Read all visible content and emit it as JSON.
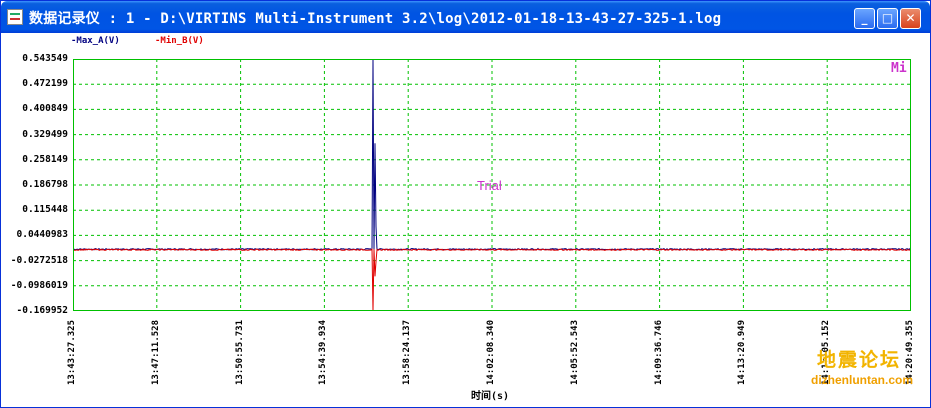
{
  "window": {
    "title": "数据记录仪 : 1 - D:\\VIRTINS Multi-Instrument 3.2\\log\\2012-01-18-13-43-27-325-1.log",
    "icon": "chart-app-icon",
    "buttons": {
      "minimize": "_",
      "maximize": "□",
      "close": "✕"
    }
  },
  "overlay": {
    "mi_label": "Mi",
    "trial_label": "Trial"
  },
  "watermark": {
    "logo_text": "地震论坛",
    "site": "dizhenluntan.com"
  },
  "colors": {
    "series_a": "#000080",
    "series_b": "#e00000",
    "grid": "#00c000",
    "plot_border": "#00c000",
    "overlay_text": "#cc33cc"
  },
  "chart_data": {
    "type": "line",
    "xlabel": "时间(s)",
    "ylabel": "",
    "y_tick_labels": [
      "0.543549",
      "0.472199",
      "0.400849",
      "0.329499",
      "0.258149",
      "0.186798",
      "0.115448",
      "0.0440983",
      "-0.0272518",
      "-0.0986019",
      "-0.169952"
    ],
    "ylim": [
      -0.169952,
      0.543549
    ],
    "x_tick_labels": [
      "13:43:27.325",
      "13:47:11.528",
      "13:50:55.731",
      "13:54:39.934",
      "13:58:24.137",
      "14:02:08.340",
      "14:05:52.543",
      "14:09:36.746",
      "14:13:20.949",
      "14:17:05.152",
      "14:20:49.355"
    ],
    "xlim_seconds": [
      0,
      2242.03
    ],
    "grid": true,
    "legend_position": "top-left",
    "series": [
      {
        "name": "Max_A(V)",
        "baseline": 0.0051,
        "noise": 0.0018,
        "spikes": [
          {
            "t": 803.0,
            "y": 0.5435
          },
          {
            "t": 807.0,
            "y": 0.305
          },
          {
            "t": 810.0,
            "y": 0.07
          }
        ]
      },
      {
        "name": "Min_B(V)",
        "baseline": 0.0035,
        "noise": 0.0018,
        "spikes": [
          {
            "t": 803.0,
            "y": -0.169952
          },
          {
            "t": 807.0,
            "y": -0.072
          },
          {
            "t": 810.0,
            "y": -0.03
          }
        ]
      }
    ]
  }
}
